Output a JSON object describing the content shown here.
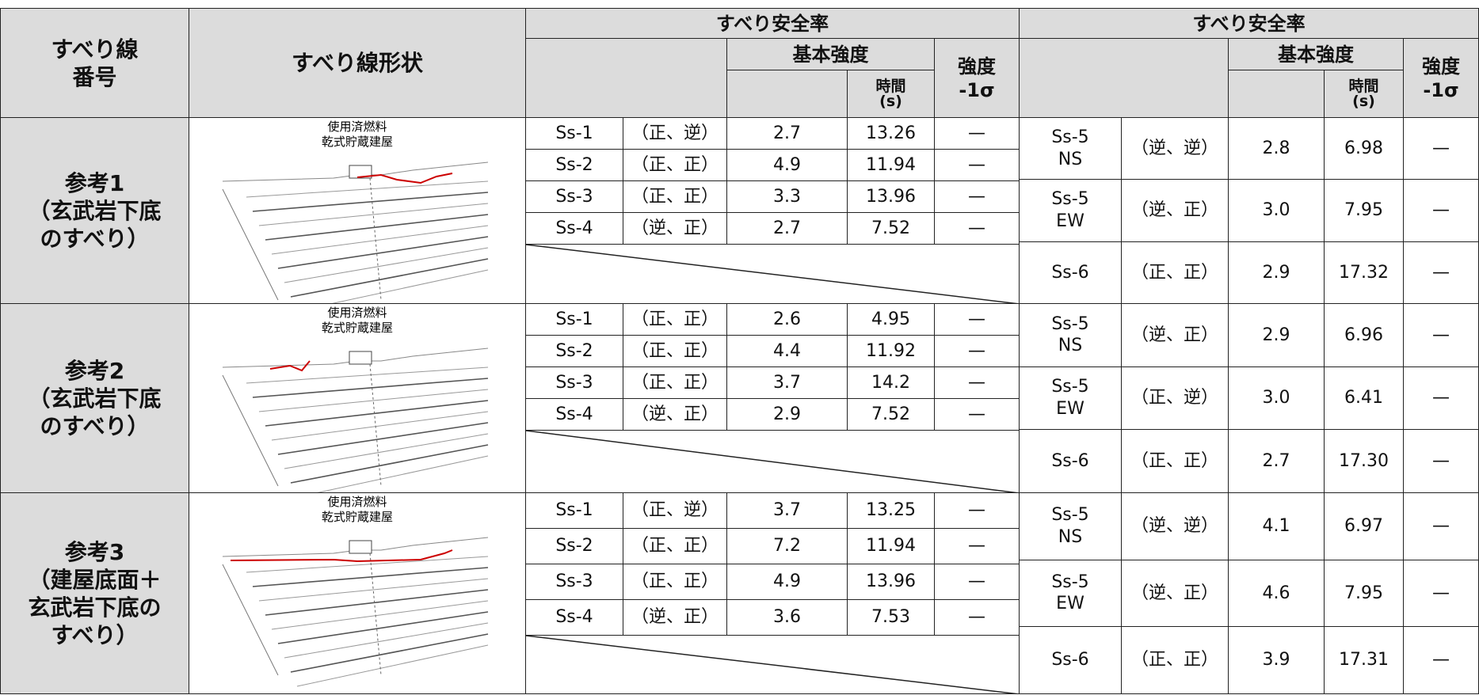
{
  "header": {
    "slip_line_no": "すべり線\n番号",
    "slip_line_shape": "すべり線形状",
    "groups": [
      {
        "title": "すべり安全率",
        "basic_strength": "基本強度",
        "time": "時間\n(s)",
        "strength_minus": "強度\n-1σ"
      },
      {
        "title": "すべり安全率",
        "basic_strength": "基本強度",
        "time": "時間\n(s)",
        "strength_minus": "強度\n-1σ"
      }
    ]
  },
  "rows": [
    {
      "label": "参考1\n（玄武岩下底\nのすべり）",
      "figure_label": "使用済燃料\n乾式貯蔵建屋",
      "left": [
        [
          "Ss-1",
          "（正、逆）",
          "2.7",
          "13.26",
          "—"
        ],
        [
          "Ss-2",
          "（正、正）",
          "4.9",
          "11.94",
          "—"
        ],
        [
          "Ss-3",
          "（正、正）",
          "3.3",
          "13.96",
          "—"
        ],
        [
          "Ss-4",
          "（逆、正）",
          "2.7",
          "7.52",
          "—"
        ]
      ],
      "right": [
        [
          "Ss-5\nNS",
          "（逆、逆）",
          "2.8",
          "6.98",
          "—"
        ],
        [
          "Ss-5\nEW",
          "（逆、正）",
          "3.0",
          "7.95",
          "—"
        ],
        [
          "Ss-6",
          "（正、正）",
          "2.9",
          "17.32",
          "—"
        ]
      ]
    },
    {
      "label": "参考2\n（玄武岩下底\nのすべり）",
      "figure_label": "使用済燃料\n乾式貯蔵建屋",
      "left": [
        [
          "Ss-1",
          "（正、正）",
          "2.6",
          "4.95",
          "—"
        ],
        [
          "Ss-2",
          "（正、正）",
          "4.4",
          "11.92",
          "—"
        ],
        [
          "Ss-3",
          "（正、正）",
          "3.7",
          "14.2",
          "—"
        ],
        [
          "Ss-4",
          "（逆、正）",
          "2.9",
          "7.52",
          "—"
        ]
      ],
      "right": [
        [
          "Ss-5\nNS",
          "（逆、正）",
          "2.9",
          "6.96",
          "—"
        ],
        [
          "Ss-5\nEW",
          "（正、逆）",
          "3.0",
          "6.41",
          "—"
        ],
        [
          "Ss-6",
          "（正、正）",
          "2.7",
          "17.30",
          "—"
        ]
      ]
    },
    {
      "label": "参考3\n（建屋底面＋\n玄武岩下底の\nすべり）",
      "figure_label": "使用済燃料\n乾式貯蔵建屋",
      "left": [
        [
          "Ss-1",
          "（正、逆）",
          "3.7",
          "13.25",
          "—"
        ],
        [
          "Ss-2",
          "（正、正）",
          "7.2",
          "11.94",
          "—"
        ],
        [
          "Ss-3",
          "（正、正）",
          "4.9",
          "13.96",
          "—"
        ],
        [
          "Ss-4",
          "（逆、正）",
          "3.6",
          "7.53",
          "—"
        ]
      ],
      "right": [
        [
          "Ss-5\nNS",
          "（逆、逆）",
          "4.1",
          "6.97",
          "—"
        ],
        [
          "Ss-5\nEW",
          "（逆、正）",
          "4.6",
          "7.95",
          "—"
        ],
        [
          "Ss-6",
          "（正、正）",
          "3.9",
          "17.31",
          "—"
        ]
      ]
    }
  ]
}
